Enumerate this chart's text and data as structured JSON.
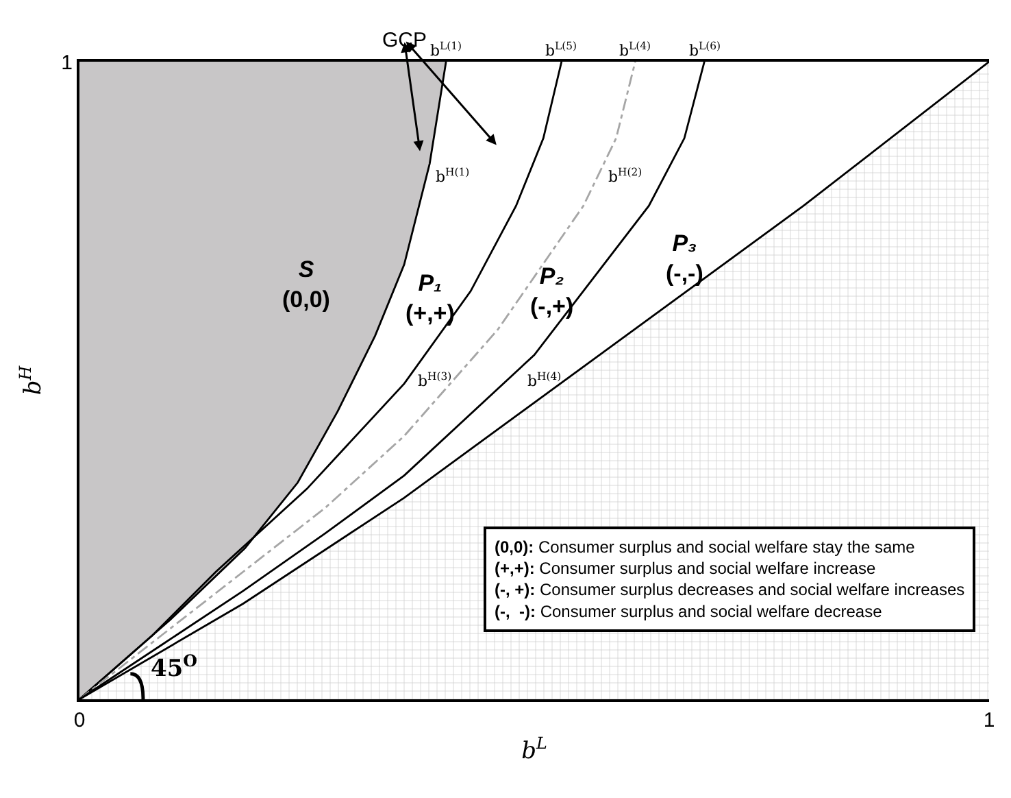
{
  "chart_data": {
    "type": "line",
    "xlabel": "b$^{L}$",
    "ylabel": "b$^{H}$",
    "xlim": [
      0,
      1
    ],
    "ylim": [
      0,
      1
    ],
    "xticks": [
      0,
      1
    ],
    "yticks": [
      1
    ],
    "marker": "none",
    "series": [
      {
        "color": "#000000",
        "x": [
          0,
          0.04,
          0.1,
          0.182,
          0.24,
          0.284,
          0.325,
          0.357,
          0.385,
          0.403
        ],
        "values": [
          0,
          0.05,
          0.125,
          0.237,
          0.34,
          0.452,
          0.57,
          0.682,
          0.84,
          1
        ]
      },
      {
        "color": "#000000",
        "x": [
          0,
          0.08,
          0.15,
          0.25,
          0.357,
          0.43,
          0.48,
          0.51,
          0.53
        ],
        "values": [
          0,
          0.1,
          0.2,
          0.33,
          0.495,
          0.64,
          0.774,
          0.88,
          1
        ]
      },
      {
        "color": "#a6a6a6",
        "line_style": "dashdot",
        "x": [
          0,
          0.09,
          0.18,
          0.27,
          0.357,
          0.46,
          0.554,
          0.59,
          0.611
        ],
        "values": [
          0,
          0.1,
          0.2,
          0.3,
          0.413,
          0.58,
          0.774,
          0.88,
          1
        ]
      },
      {
        "color": "#000000",
        "x": [
          0,
          0.09,
          0.18,
          0.27,
          0.357,
          0.5,
          0.626,
          0.665,
          0.687
        ],
        "values": [
          0,
          0.085,
          0.17,
          0.26,
          0.351,
          0.54,
          0.774,
          0.88,
          1
        ]
      },
      {
        "type": "area",
        "color": "#000000",
        "x": [
          0,
          0.18,
          0.357,
          0.796,
          1
        ],
        "values": [
          0,
          0.15,
          0.316,
          0.774,
          1
        ]
      }
    ],
    "annotations": [
      {
        "text": "b$^{L(1)}$",
        "x": 0.403,
        "y": 1
      },
      {
        "text": "b$^{L(5)}$",
        "x": 0.53,
        "y": 1
      },
      {
        "text": "b$^{L(4)}$",
        "x": 0.611,
        "y": 1
      },
      {
        "text": "b$^{L(6)}$",
        "x": 0.687,
        "y": 1
      },
      {
        "text": "b$^{H(1)}$",
        "x": 0.38,
        "y": 0.82
      },
      {
        "text": "b$^{H(2)}$",
        "x": 0.57,
        "y": 0.82
      },
      {
        "text": "b$^{H(3)}$",
        "x": 0.36,
        "y": 0.5
      },
      {
        "text": "b$^{H(4)}$",
        "x": 0.48,
        "y": 0.5
      },
      {
        "text": "45$^{O}$",
        "x": 0.07,
        "y": 0.05
      },
      "GCP",
      "S\n(0,0)",
      "P₁\n(+,+)",
      "P₂\n(-,+)",
      "P₃\n(-,-)",
      "(0,0): Consumer surplus and social welfare stay the same",
      "(+,+): Consumer surplus and social welfare increase",
      "(-, +): Consumer surplus decreases and social welfare increases",
      "(-,  -): Consumer surplus and social welfare decrease"
    ]
  }
}
